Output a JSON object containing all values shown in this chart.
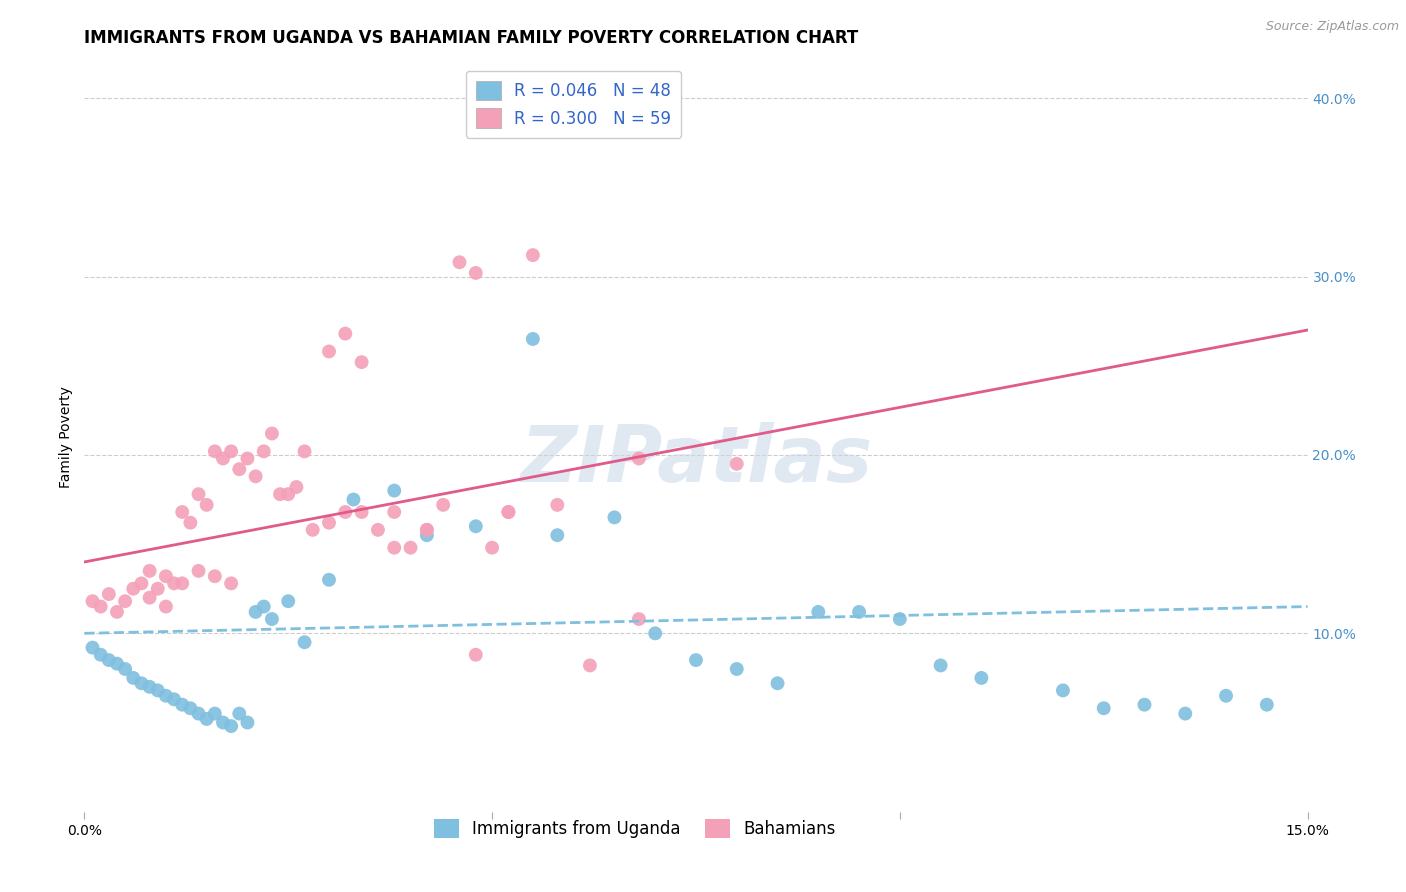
{
  "title": "IMMIGRANTS FROM UGANDA VS BAHAMIAN FAMILY POVERTY CORRELATION CHART",
  "source": "Source: ZipAtlas.com",
  "ylabel": "Family Poverty",
  "xlim": [
    0.0,
    0.15
  ],
  "ylim": [
    0.0,
    0.42
  ],
  "xticks": [
    0.0,
    0.05,
    0.1,
    0.15
  ],
  "xtick_labels": [
    "0.0%",
    "",
    "",
    "15.0%"
  ],
  "yticks_right": [
    0.1,
    0.2,
    0.3,
    0.4
  ],
  "ytick_labels_right": [
    "10.0%",
    "20.0%",
    "30.0%",
    "40.0%"
  ],
  "color_blue": "#7fbfdf",
  "color_pink": "#f4a0b8",
  "color_blue_text": "#4a90c8",
  "color_pink_text": "#e05a8a",
  "color_legend_text": "#3366cc",
  "watermark": "ZIPatlas",
  "blue_scatter_x": [
    0.001,
    0.002,
    0.003,
    0.004,
    0.005,
    0.006,
    0.007,
    0.008,
    0.009,
    0.01,
    0.011,
    0.012,
    0.013,
    0.014,
    0.015,
    0.016,
    0.017,
    0.018,
    0.019,
    0.02,
    0.021,
    0.022,
    0.023,
    0.025,
    0.027,
    0.03,
    0.033,
    0.038,
    0.042,
    0.048,
    0.055,
    0.058,
    0.065,
    0.07,
    0.075,
    0.08,
    0.085,
    0.09,
    0.095,
    0.1,
    0.105,
    0.11,
    0.12,
    0.125,
    0.13,
    0.135,
    0.14,
    0.145
  ],
  "blue_scatter_y": [
    0.092,
    0.088,
    0.085,
    0.083,
    0.08,
    0.075,
    0.072,
    0.07,
    0.068,
    0.065,
    0.063,
    0.06,
    0.058,
    0.055,
    0.052,
    0.055,
    0.05,
    0.048,
    0.055,
    0.05,
    0.112,
    0.115,
    0.108,
    0.118,
    0.095,
    0.13,
    0.175,
    0.18,
    0.155,
    0.16,
    0.265,
    0.155,
    0.165,
    0.1,
    0.085,
    0.08,
    0.072,
    0.112,
    0.112,
    0.108,
    0.082,
    0.075,
    0.068,
    0.058,
    0.06,
    0.055,
    0.065,
    0.06
  ],
  "pink_scatter_x": [
    0.001,
    0.002,
    0.003,
    0.004,
    0.005,
    0.006,
    0.007,
    0.008,
    0.009,
    0.01,
    0.011,
    0.012,
    0.013,
    0.014,
    0.015,
    0.016,
    0.017,
    0.018,
    0.019,
    0.02,
    0.021,
    0.022,
    0.023,
    0.024,
    0.025,
    0.026,
    0.027,
    0.028,
    0.03,
    0.032,
    0.034,
    0.036,
    0.038,
    0.04,
    0.042,
    0.044,
    0.046,
    0.048,
    0.05,
    0.052,
    0.055,
    0.058,
    0.062,
    0.068,
    0.008,
    0.01,
    0.012,
    0.014,
    0.016,
    0.018,
    0.03,
    0.032,
    0.034,
    0.038,
    0.042,
    0.048,
    0.052,
    0.068,
    0.08
  ],
  "pink_scatter_y": [
    0.118,
    0.115,
    0.122,
    0.112,
    0.118,
    0.125,
    0.128,
    0.12,
    0.125,
    0.115,
    0.128,
    0.168,
    0.162,
    0.178,
    0.172,
    0.202,
    0.198,
    0.202,
    0.192,
    0.198,
    0.188,
    0.202,
    0.212,
    0.178,
    0.178,
    0.182,
    0.202,
    0.158,
    0.162,
    0.168,
    0.168,
    0.158,
    0.168,
    0.148,
    0.158,
    0.172,
    0.308,
    0.302,
    0.148,
    0.168,
    0.312,
    0.172,
    0.082,
    0.108,
    0.135,
    0.132,
    0.128,
    0.135,
    0.132,
    0.128,
    0.258,
    0.268,
    0.252,
    0.148,
    0.158,
    0.088,
    0.168,
    0.198,
    0.195
  ],
  "blue_line_x": [
    0.0,
    0.15
  ],
  "blue_line_y": [
    0.1,
    0.115
  ],
  "pink_line_x": [
    0.0,
    0.15
  ],
  "pink_line_y": [
    0.14,
    0.27
  ],
  "grid_color": "#cccccc",
  "background_color": "#ffffff",
  "title_fontsize": 12,
  "axis_label_fontsize": 10,
  "tick_fontsize": 10,
  "legend_fontsize": 12
}
